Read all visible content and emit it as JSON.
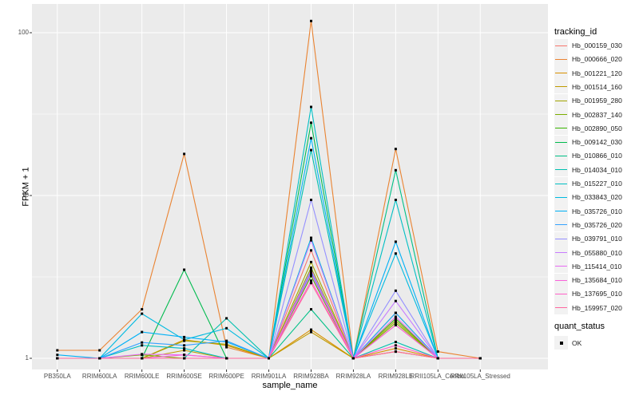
{
  "figure_colors": {
    "panel_bg": "#EBEBEB",
    "grid": "#FFFFFF",
    "tick": "#333333",
    "tick_label": "#4D4D4D",
    "point": "#000000",
    "legend_key_bg": "#F2F2F2"
  },
  "chart_data": {
    "type": "line",
    "title": "",
    "xlabel": "sample_name",
    "ylabel": "FPKM + 1",
    "y_scale": "log10",
    "ylim": [
      1,
      130
    ],
    "y_ticks": [
      {
        "label": "1",
        "value": 1
      },
      {
        "label": "10",
        "value": 10
      },
      {
        "label": "100",
        "value": 100
      }
    ],
    "grid": "on",
    "legend_position": "right",
    "legend_color_title": "tracking_id",
    "legend_shape_title": "quant_status",
    "legend_shape_items": [
      {
        "label": "OK",
        "marker": "filled-square"
      }
    ],
    "categories": [
      "PB350LA",
      "RRIM600LA",
      "RRIM600LE",
      "RRIM600SE",
      "RRIM600PE",
      "RRIM901LA",
      "RRIM928BA",
      "RRIM928LA",
      "RRIM928LE",
      "RRII105LA_Control",
      "RRII105LA_Stressed"
    ],
    "series": [
      {
        "name": "Hb_000159_030",
        "color": "#F8766D",
        "values": [
          1,
          1,
          1,
          1,
          1,
          1,
          4.6,
          1,
          1.6,
          1,
          1
        ]
      },
      {
        "name": "Hb_000666_020",
        "color": "#EA8331",
        "values": [
          1.12,
          1.12,
          2.0,
          18,
          1.17,
          1,
          118,
          1,
          19.3,
          1.1,
          1
        ]
      },
      {
        "name": "Hb_001221_120",
        "color": "#D89000",
        "values": [
          1,
          1,
          1,
          1.3,
          1.2,
          1,
          1.5,
          1,
          1.15,
          1,
          1
        ]
      },
      {
        "name": "Hb_001514_160",
        "color": "#C09B00",
        "values": [
          1,
          1,
          1,
          1.12,
          1,
          1,
          1.45,
          1,
          1.1,
          1,
          1
        ]
      },
      {
        "name": "Hb_001959_280",
        "color": "#A3A500",
        "values": [
          1,
          1,
          1,
          1.28,
          1.22,
          1,
          3.9,
          1,
          1.7,
          1,
          1
        ]
      },
      {
        "name": "Hb_002837_140",
        "color": "#7CAE00",
        "values": [
          1,
          1,
          1.05,
          1,
          1,
          1,
          3.6,
          1,
          1.65,
          1,
          1
        ]
      },
      {
        "name": "Hb_002890_050",
        "color": "#39B600",
        "values": [
          1,
          1,
          1,
          1,
          1,
          1,
          3.2,
          1,
          1.75,
          1,
          1
        ]
      },
      {
        "name": "Hb_009142_030",
        "color": "#00BB4E",
        "values": [
          1,
          1,
          1,
          3.5,
          1,
          1,
          28,
          1,
          1.9,
          1,
          1
        ]
      },
      {
        "name": "Hb_010866_010",
        "color": "#00C087",
        "values": [
          1,
          1,
          1,
          1,
          1,
          1,
          2.0,
          1,
          14.3,
          1,
          1
        ]
      },
      {
        "name": "Hb_014034_010",
        "color": "#00C0AF",
        "values": [
          1,
          1,
          1,
          1,
          1.76,
          1,
          19,
          1,
          1.26,
          1,
          1
        ]
      },
      {
        "name": "Hb_015227_010",
        "color": "#00BFC4",
        "values": [
          1,
          1,
          1.2,
          1.15,
          1,
          1,
          35,
          1,
          9.4,
          1,
          1
        ]
      },
      {
        "name": "Hb_033843_020",
        "color": "#00BAE0",
        "values": [
          1,
          1,
          1.88,
          1.3,
          1.53,
          1,
          5.5,
          1,
          4.4,
          1,
          1
        ]
      },
      {
        "name": "Hb_035726_010",
        "color": "#00B0F6",
        "values": [
          1.05,
          1,
          1.45,
          1.35,
          1.26,
          1,
          22.5,
          1,
          5.2,
          1,
          1
        ]
      },
      {
        "name": "Hb_035726_020",
        "color": "#35A2FF",
        "values": [
          1,
          1,
          1.25,
          1.2,
          1.28,
          1,
          3.4,
          1,
          1.9,
          1,
          1
        ]
      },
      {
        "name": "Hb_039791_010",
        "color": "#9590FF",
        "values": [
          1,
          1,
          1,
          1,
          1,
          1,
          9.4,
          1,
          2.6,
          1,
          1
        ]
      },
      {
        "name": "Hb_055880_010",
        "color": "#C77CFF",
        "values": [
          1,
          1,
          1,
          1,
          1,
          1,
          5.3,
          1,
          2.25,
          1,
          1
        ]
      },
      {
        "name": "Hb_115414_010",
        "color": "#E76BF3",
        "values": [
          1,
          1,
          1.06,
          1.05,
          1,
          1,
          3.5,
          1,
          1.8,
          1,
          1
        ]
      },
      {
        "name": "Hb_135684_010",
        "color": "#FA62DB",
        "values": [
          1,
          1,
          1,
          1.05,
          1,
          1,
          3.3,
          1,
          1.6,
          1,
          1
        ]
      },
      {
        "name": "Hb_137695_010",
        "color": "#FF61C9",
        "values": [
          1,
          1,
          1,
          1,
          1,
          1,
          3.0,
          1,
          1.2,
          1,
          1
        ]
      },
      {
        "name": "Hb_159957_020",
        "color": "#FF689F",
        "values": [
          1,
          1,
          1,
          1,
          1,
          1,
          2.9,
          1,
          1.1,
          1,
          1
        ]
      }
    ]
  }
}
